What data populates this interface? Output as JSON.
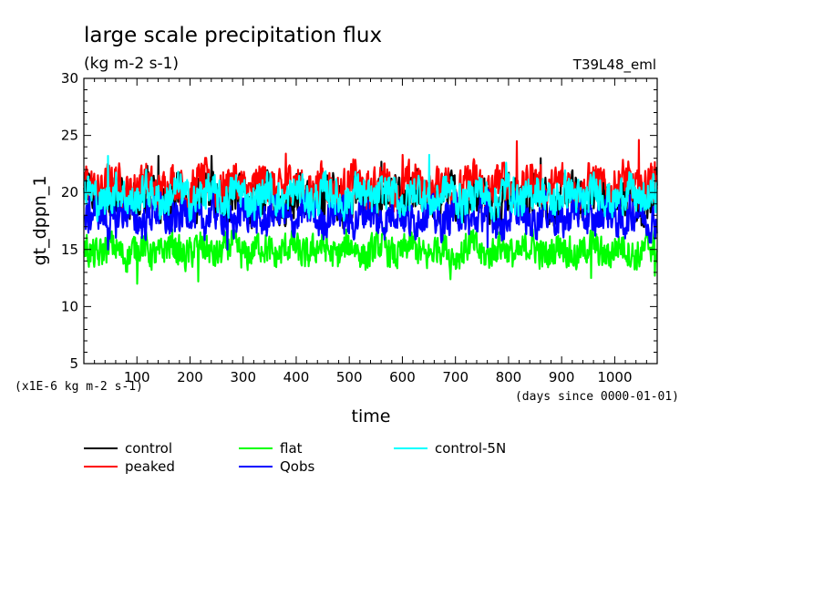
{
  "title": "large scale precipitation flux",
  "units": "(kg m-2 s-1)",
  "experiment": "T39L48_eml",
  "ylabel": "gt_dppn_1",
  "xlabel": "time",
  "y_scale_note": "(x1E-6 kg m-2 s-1)",
  "x_units_note": "(days since 0000-01-01)",
  "chart_data": {
    "type": "line",
    "xlim": [
      0,
      1080
    ],
    "ylim": [
      5,
      30
    ],
    "x_ticks": [
      100,
      200,
      300,
      400,
      500,
      600,
      700,
      800,
      900,
      1000
    ],
    "y_ticks": [
      5,
      10,
      15,
      20,
      25,
      30
    ],
    "n_points": 1080,
    "series": [
      {
        "name": "control",
        "color": "#000000",
        "mean": 19.5,
        "amplitude": 1.9,
        "peaks": [
          [
            140,
            23.2
          ],
          [
            240,
            23.2
          ],
          [
            560,
            22.7
          ],
          [
            860,
            23.0
          ]
        ]
      },
      {
        "name": "peaked",
        "color": "#ff0000",
        "mean": 20.6,
        "amplitude": 1.7,
        "peaks": [
          [
            815,
            24.5
          ],
          [
            1045,
            24.6
          ],
          [
            380,
            23.4
          ],
          [
            600,
            23.3
          ]
        ]
      },
      {
        "name": "flat",
        "color": "#00ff00",
        "mean": 14.9,
        "amplitude": 1.4,
        "peaks": [
          [
            100,
            12.0
          ],
          [
            215,
            12.2
          ],
          [
            690,
            12.4
          ],
          [
            955,
            12.5
          ],
          [
            1075,
            12.7
          ]
        ]
      },
      {
        "name": "Qobs",
        "color": "#0000ff",
        "mean": 17.9,
        "amplitude": 1.6,
        "peaks": [
          [
            45,
            15.0
          ],
          [
            270,
            15.0
          ],
          [
            760,
            15.2
          ]
        ]
      },
      {
        "name": "control-5N",
        "color": "#00ffff",
        "mean": 19.7,
        "amplitude": 1.6,
        "peaks": [
          [
            45,
            23.2
          ],
          [
            650,
            23.3
          ],
          [
            795,
            22.6
          ]
        ]
      }
    ]
  }
}
